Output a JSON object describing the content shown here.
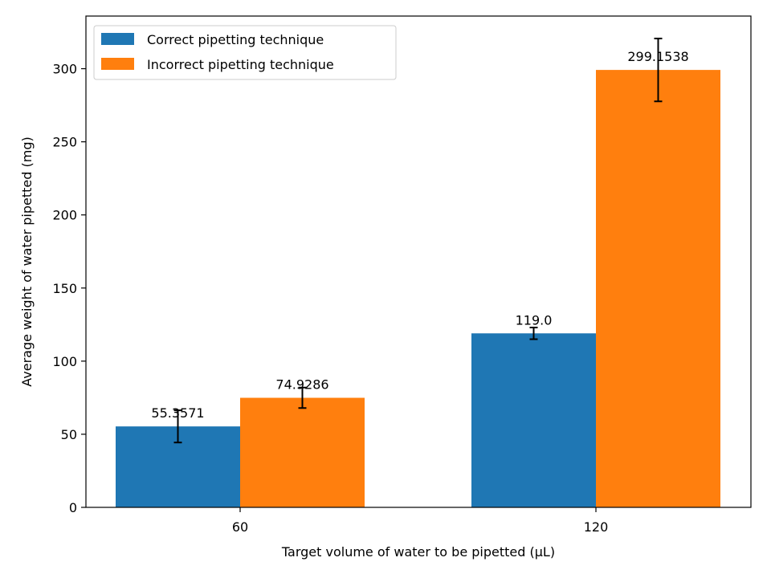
{
  "chart_data": {
    "type": "bar",
    "title": "",
    "xlabel": "Target volume of water to be pipetted (μL)",
    "ylabel": "Average weight of water pipetted (mg)",
    "categories": [
      "60",
      "120"
    ],
    "ylim": [
      0,
      336
    ],
    "yticks": [
      0,
      50,
      100,
      150,
      200,
      250,
      300
    ],
    "grid": false,
    "legend_position": "top-left",
    "series": [
      {
        "name": "Correct pipetting technique",
        "color": "#1f77b4",
        "values": [
          55.3571,
          119.0
        ],
        "errors": [
          11,
          4
        ],
        "labels": [
          "55.3571",
          "119.0"
        ]
      },
      {
        "name": "Incorrect pipetting technique",
        "color": "#ff7f0e",
        "values": [
          74.9286,
          299.1538
        ],
        "errors": [
          7,
          21.5
        ],
        "labels": [
          "74.9286",
          "299.1538"
        ]
      }
    ]
  }
}
